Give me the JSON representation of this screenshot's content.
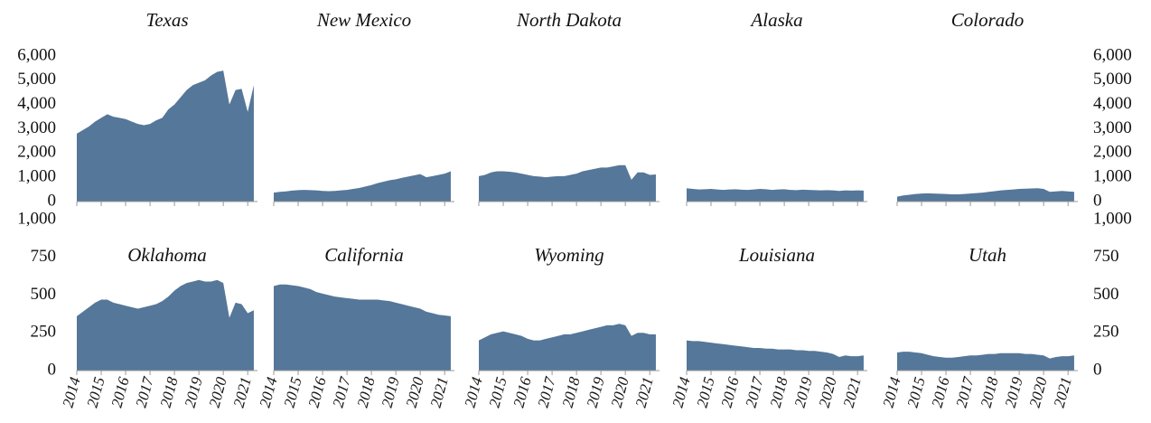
{
  "chart_data": [
    {
      "type": "area",
      "title": "Texas",
      "color": "#557799",
      "xlim": [
        2014,
        2021.4
      ],
      "xticks": [
        2014,
        2015,
        2016,
        2017,
        2018,
        2019,
        2020,
        2021
      ],
      "ylim": [
        0,
        6000
      ],
      "yticks": [
        0,
        {
          "value": 1000,
          "label": "1,000"
        },
        {
          "value": 2000,
          "label": "2,000"
        },
        {
          "value": 3000,
          "label": "3,000"
        },
        {
          "value": 4000,
          "label": "4,000"
        },
        {
          "value": 5000,
          "label": "5,000"
        },
        {
          "value": 6000,
          "label": "6,000"
        }
      ],
      "x": [
        2014,
        2014.25,
        2014.5,
        2014.75,
        2015,
        2015.25,
        2015.5,
        2015.75,
        2016,
        2016.25,
        2016.5,
        2016.75,
        2017,
        2017.25,
        2017.5,
        2017.75,
        2018,
        2018.25,
        2018.5,
        2018.75,
        2019,
        2019.25,
        2019.5,
        2019.75,
        2020,
        2020.25,
        2020.5,
        2020.75,
        2021,
        2021.25
      ],
      "values": [
        2800,
        2950,
        3100,
        3300,
        3450,
        3600,
        3500,
        3450,
        3400,
        3300,
        3200,
        3150,
        3200,
        3350,
        3450,
        3800,
        4000,
        4300,
        4600,
        4800,
        4900,
        5000,
        5200,
        5350,
        5400,
        4000,
        4600,
        4650,
        3700,
        4800
      ]
    },
    {
      "type": "area",
      "title": "New Mexico",
      "color": "#557799",
      "xlim": [
        2014,
        2021.4
      ],
      "xticks": [
        2014,
        2015,
        2016,
        2017,
        2018,
        2019,
        2020,
        2021
      ],
      "ylim": [
        0,
        6000
      ],
      "yticks": [
        0,
        {
          "value": 1000,
          "label": "1,000"
        },
        {
          "value": 2000,
          "label": "2,000"
        },
        {
          "value": 3000,
          "label": "3,000"
        },
        {
          "value": 4000,
          "label": "4,000"
        },
        {
          "value": 5000,
          "label": "5,000"
        },
        {
          "value": 6000,
          "label": "6,000"
        }
      ],
      "x": [
        2014,
        2014.25,
        2014.5,
        2014.75,
        2015,
        2015.25,
        2015.5,
        2015.75,
        2016,
        2016.25,
        2016.5,
        2016.75,
        2017,
        2017.25,
        2017.5,
        2017.75,
        2018,
        2018.25,
        2018.5,
        2018.75,
        2019,
        2019.25,
        2019.5,
        2019.75,
        2020,
        2020.25,
        2020.5,
        2020.75,
        2021,
        2021.25
      ],
      "values": [
        370,
        400,
        420,
        450,
        470,
        480,
        470,
        460,
        440,
        430,
        440,
        460,
        480,
        520,
        560,
        620,
        680,
        760,
        820,
        880,
        920,
        980,
        1030,
        1080,
        1130,
        1000,
        1050,
        1100,
        1150,
        1250
      ]
    },
    {
      "type": "area",
      "title": "North Dakota",
      "color": "#557799",
      "xlim": [
        2014,
        2021.4
      ],
      "xticks": [
        2014,
        2015,
        2016,
        2017,
        2018,
        2019,
        2020,
        2021
      ],
      "ylim": [
        0,
        6000
      ],
      "yticks": [
        0,
        {
          "value": 1000,
          "label": "1,000"
        },
        {
          "value": 2000,
          "label": "2,000"
        },
        {
          "value": 3000,
          "label": "3,000"
        },
        {
          "value": 4000,
          "label": "4,000"
        },
        {
          "value": 5000,
          "label": "5,000"
        },
        {
          "value": 6000,
          "label": "6,000"
        }
      ],
      "x": [
        2014,
        2014.25,
        2014.5,
        2014.75,
        2015,
        2015.25,
        2015.5,
        2015.75,
        2016,
        2016.25,
        2016.5,
        2016.75,
        2017,
        2017.25,
        2017.5,
        2017.75,
        2018,
        2018.25,
        2018.5,
        2018.75,
        2019,
        2019.25,
        2019.5,
        2019.75,
        2020,
        2020.25,
        2020.5,
        2020.75,
        2021,
        2021.25
      ],
      "values": [
        1050,
        1100,
        1200,
        1250,
        1250,
        1230,
        1200,
        1150,
        1100,
        1050,
        1030,
        1000,
        1030,
        1050,
        1050,
        1100,
        1150,
        1250,
        1300,
        1350,
        1400,
        1400,
        1450,
        1500,
        1500,
        900,
        1200,
        1200,
        1100,
        1120
      ]
    },
    {
      "type": "area",
      "title": "Alaska",
      "color": "#557799",
      "xlim": [
        2014,
        2021.4
      ],
      "xticks": [
        2014,
        2015,
        2016,
        2017,
        2018,
        2019,
        2020,
        2021
      ],
      "ylim": [
        0,
        6000
      ],
      "yticks": [
        0,
        {
          "value": 1000,
          "label": "1,000"
        },
        {
          "value": 2000,
          "label": "2,000"
        },
        {
          "value": 3000,
          "label": "3,000"
        },
        {
          "value": 4000,
          "label": "4,000"
        },
        {
          "value": 5000,
          "label": "5,000"
        },
        {
          "value": 6000,
          "label": "6,000"
        }
      ],
      "x": [
        2014,
        2014.25,
        2014.5,
        2014.75,
        2015,
        2015.25,
        2015.5,
        2015.75,
        2016,
        2016.25,
        2016.5,
        2016.75,
        2017,
        2017.25,
        2017.5,
        2017.75,
        2018,
        2018.25,
        2018.5,
        2018.75,
        2019,
        2019.25,
        2019.5,
        2019.75,
        2020,
        2020.25,
        2020.5,
        2020.75,
        2021,
        2021.25
      ],
      "values": [
        550,
        520,
        500,
        510,
        520,
        500,
        480,
        500,
        510,
        490,
        480,
        500,
        520,
        510,
        480,
        500,
        510,
        480,
        470,
        490,
        480,
        470,
        460,
        470,
        460,
        440,
        460,
        450,
        460,
        450
      ]
    },
    {
      "type": "area",
      "title": "Colorado",
      "color": "#557799",
      "xlim": [
        2014,
        2021.4
      ],
      "xticks": [
        2014,
        2015,
        2016,
        2017,
        2018,
        2019,
        2020,
        2021
      ],
      "ylim": [
        0,
        6000
      ],
      "yticks": [
        0,
        {
          "value": 1000,
          "label": "1,000"
        },
        {
          "value": 2000,
          "label": "2,000"
        },
        {
          "value": 3000,
          "label": "3,000"
        },
        {
          "value": 4000,
          "label": "4,000"
        },
        {
          "value": 5000,
          "label": "5,000"
        },
        {
          "value": 6000,
          "label": "6,000"
        }
      ],
      "x": [
        2014,
        2014.25,
        2014.5,
        2014.75,
        2015,
        2015.25,
        2015.5,
        2015.75,
        2016,
        2016.25,
        2016.5,
        2016.75,
        2017,
        2017.25,
        2017.5,
        2017.75,
        2018,
        2018.25,
        2018.5,
        2018.75,
        2019,
        2019.25,
        2019.5,
        2019.75,
        2020,
        2020.25,
        2020.5,
        2020.75,
        2021,
        2021.25
      ],
      "values": [
        200,
        250,
        280,
        310,
        330,
        340,
        330,
        320,
        310,
        300,
        300,
        310,
        330,
        350,
        370,
        400,
        430,
        460,
        480,
        500,
        520,
        530,
        540,
        550,
        520,
        400,
        420,
        440,
        420,
        400
      ]
    },
    {
      "type": "area",
      "title": "Oklahoma",
      "color": "#557799",
      "xlim": [
        2014,
        2021.4
      ],
      "xticks": [
        2014,
        2015,
        2016,
        2017,
        2018,
        2019,
        2020,
        2021
      ],
      "ylim": [
        0,
        1000
      ],
      "yticks": [
        0,
        250,
        500,
        750,
        {
          "value": 1000,
          "label": "1,000"
        }
      ],
      "x": [
        2014,
        2014.25,
        2014.5,
        2014.75,
        2015,
        2015.25,
        2015.5,
        2015.75,
        2016,
        2016.25,
        2016.5,
        2016.75,
        2017,
        2017.25,
        2017.5,
        2017.75,
        2018,
        2018.25,
        2018.5,
        2018.75,
        2019,
        2019.25,
        2019.5,
        2019.75,
        2020,
        2020.25,
        2020.5,
        2020.75,
        2021,
        2021.25
      ],
      "values": [
        360,
        390,
        420,
        450,
        470,
        470,
        450,
        440,
        430,
        420,
        410,
        420,
        430,
        440,
        460,
        490,
        530,
        560,
        580,
        590,
        600,
        590,
        590,
        600,
        580,
        350,
        450,
        440,
        380,
        400
      ]
    },
    {
      "type": "area",
      "title": "California",
      "color": "#557799",
      "xlim": [
        2014,
        2021.4
      ],
      "xticks": [
        2014,
        2015,
        2016,
        2017,
        2018,
        2019,
        2020,
        2021
      ],
      "ylim": [
        0,
        1000
      ],
      "yticks": [
        0,
        250,
        500,
        750,
        {
          "value": 1000,
          "label": "1,000"
        }
      ],
      "x": [
        2014,
        2014.25,
        2014.5,
        2014.75,
        2015,
        2015.25,
        2015.5,
        2015.75,
        2016,
        2016.25,
        2016.5,
        2016.75,
        2017,
        2017.25,
        2017.5,
        2017.75,
        2018,
        2018.25,
        2018.5,
        2018.75,
        2019,
        2019.25,
        2019.5,
        2019.75,
        2020,
        2020.25,
        2020.5,
        2020.75,
        2021,
        2021.25
      ],
      "values": [
        560,
        570,
        570,
        565,
        560,
        550,
        540,
        520,
        510,
        500,
        490,
        485,
        480,
        475,
        470,
        470,
        470,
        470,
        465,
        460,
        450,
        440,
        430,
        420,
        410,
        390,
        380,
        370,
        365,
        360
      ]
    },
    {
      "type": "area",
      "title": "Wyoming",
      "color": "#557799",
      "xlim": [
        2014,
        2021.4
      ],
      "xticks": [
        2014,
        2015,
        2016,
        2017,
        2018,
        2019,
        2020,
        2021
      ],
      "ylim": [
        0,
        1000
      ],
      "yticks": [
        0,
        250,
        500,
        750,
        {
          "value": 1000,
          "label": "1,000"
        }
      ],
      "x": [
        2014,
        2014.25,
        2014.5,
        2014.75,
        2015,
        2015.25,
        2015.5,
        2015.75,
        2016,
        2016.25,
        2016.5,
        2016.75,
        2017,
        2017.25,
        2017.5,
        2017.75,
        2018,
        2018.25,
        2018.5,
        2018.75,
        2019,
        2019.25,
        2019.5,
        2019.75,
        2020,
        2020.25,
        2020.5,
        2020.75,
        2021,
        2021.25
      ],
      "values": [
        200,
        220,
        240,
        250,
        260,
        250,
        240,
        230,
        210,
        200,
        200,
        210,
        220,
        230,
        240,
        240,
        250,
        260,
        270,
        280,
        290,
        300,
        300,
        310,
        300,
        230,
        250,
        250,
        240,
        240
      ]
    },
    {
      "type": "area",
      "title": "Louisiana",
      "color": "#557799",
      "xlim": [
        2014,
        2021.4
      ],
      "xticks": [
        2014,
        2015,
        2016,
        2017,
        2018,
        2019,
        2020,
        2021
      ],
      "ylim": [
        0,
        1000
      ],
      "yticks": [
        0,
        250,
        500,
        750,
        {
          "value": 1000,
          "label": "1,000"
        }
      ],
      "x": [
        2014,
        2014.25,
        2014.5,
        2014.75,
        2015,
        2015.25,
        2015.5,
        2015.75,
        2016,
        2016.25,
        2016.5,
        2016.75,
        2017,
        2017.25,
        2017.5,
        2017.75,
        2018,
        2018.25,
        2018.5,
        2018.75,
        2019,
        2019.25,
        2019.5,
        2019.75,
        2020,
        2020.25,
        2020.5,
        2020.75,
        2021,
        2021.25
      ],
      "values": [
        200,
        195,
        195,
        190,
        185,
        180,
        175,
        170,
        165,
        160,
        155,
        150,
        150,
        145,
        145,
        140,
        140,
        140,
        135,
        135,
        130,
        130,
        125,
        120,
        110,
        90,
        100,
        95,
        95,
        100
      ]
    },
    {
      "type": "area",
      "title": "Utah",
      "color": "#557799",
      "xlim": [
        2014,
        2021.4
      ],
      "xticks": [
        2014,
        2015,
        2016,
        2017,
        2018,
        2019,
        2020,
        2021
      ],
      "ylim": [
        0,
        1000
      ],
      "yticks": [
        0,
        250,
        500,
        750,
        {
          "value": 1000,
          "label": "1,000"
        }
      ],
      "x": [
        2014,
        2014.25,
        2014.5,
        2014.75,
        2015,
        2015.25,
        2015.5,
        2015.75,
        2016,
        2016.25,
        2016.5,
        2016.75,
        2017,
        2017.25,
        2017.5,
        2017.75,
        2018,
        2018.25,
        2018.5,
        2018.75,
        2019,
        2019.25,
        2019.5,
        2019.75,
        2020,
        2020.25,
        2020.5,
        2020.75,
        2021,
        2021.25
      ],
      "values": [
        120,
        125,
        125,
        120,
        115,
        105,
        95,
        90,
        85,
        85,
        90,
        95,
        100,
        100,
        105,
        110,
        110,
        115,
        115,
        115,
        115,
        110,
        110,
        105,
        100,
        80,
        90,
        95,
        95,
        100
      ]
    }
  ]
}
